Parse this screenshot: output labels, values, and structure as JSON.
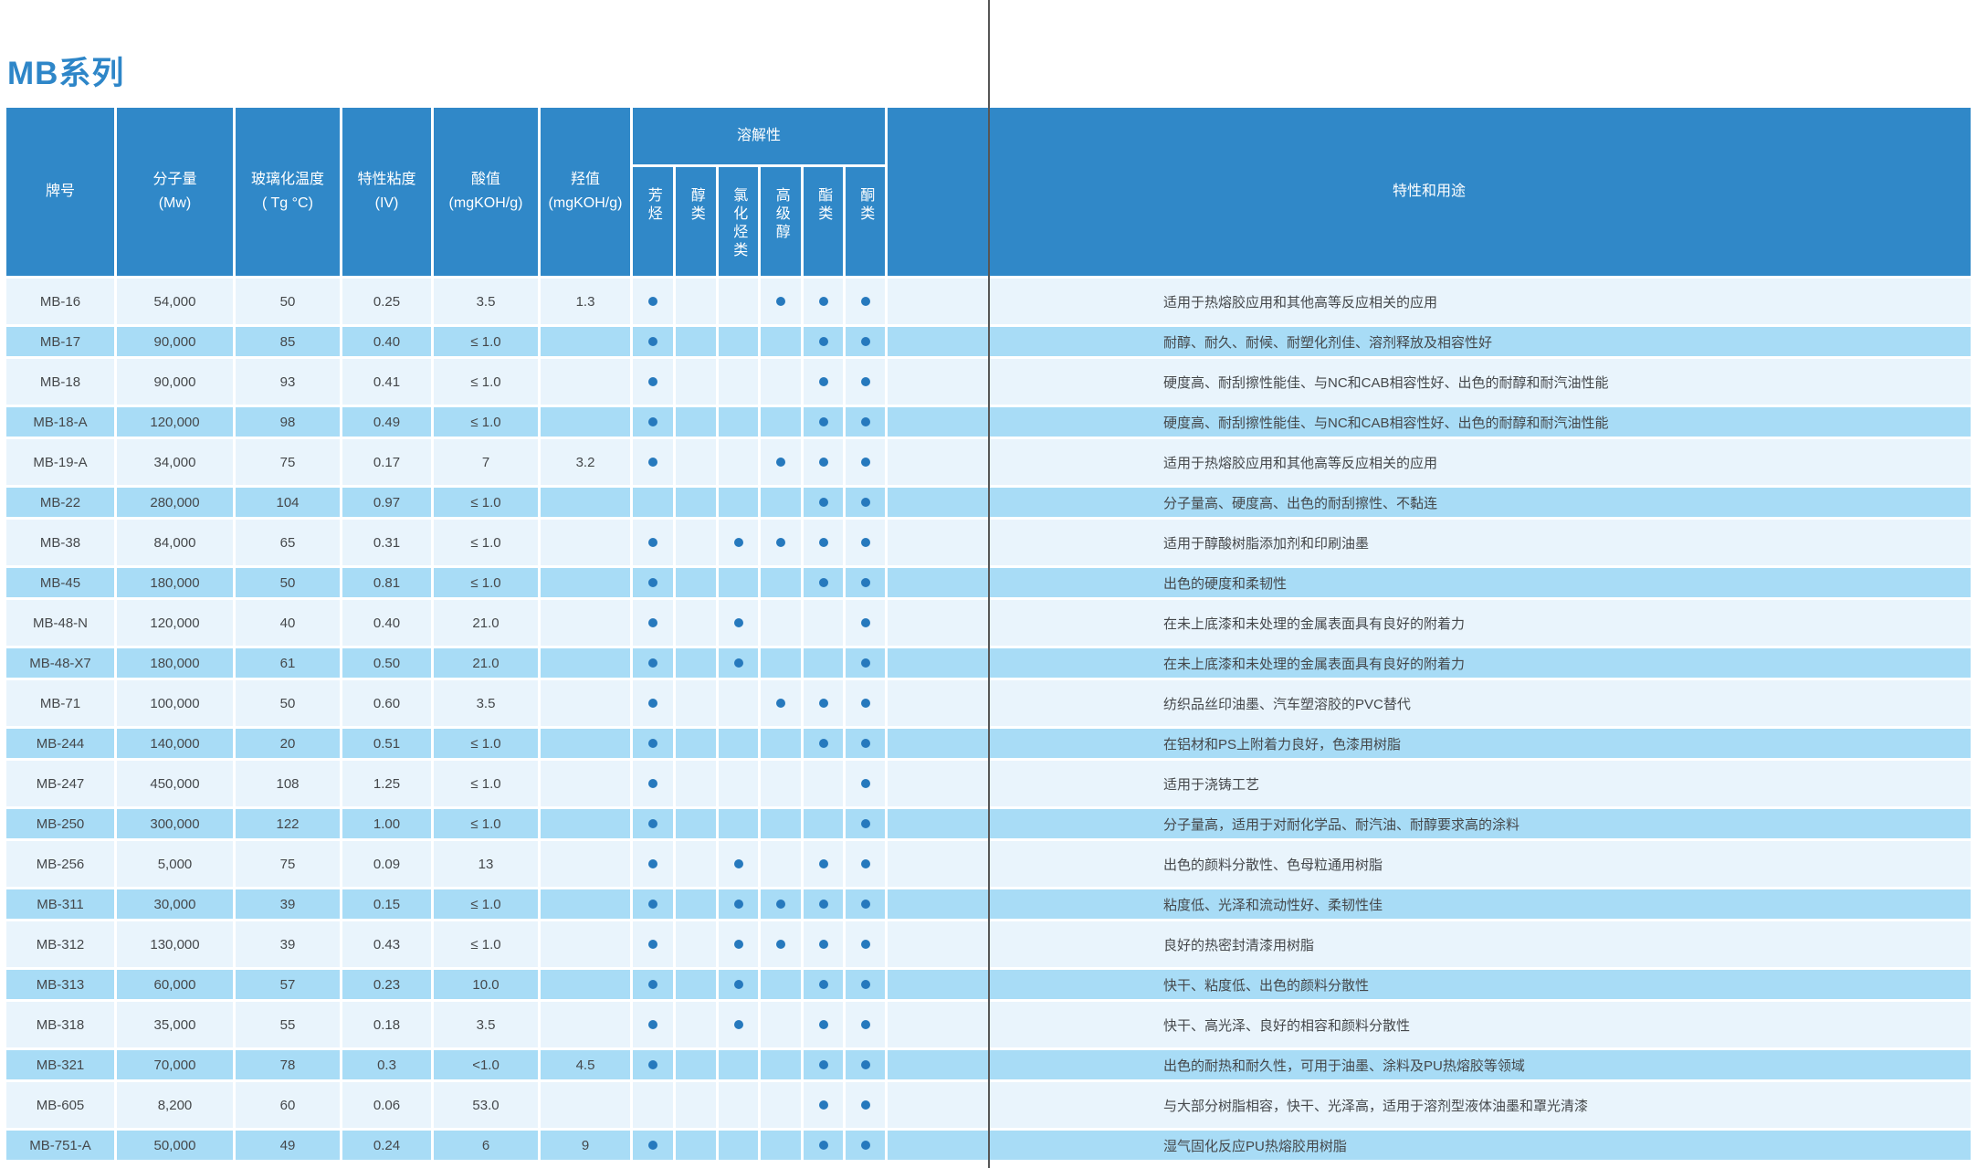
{
  "page": {
    "title": "MB系列"
  },
  "colors": {
    "header_blue": "#3088C8",
    "row_light": "#E9F4FC",
    "row_dark": "#A8DCF6",
    "dot_blue": "#2679BD",
    "title_blue": "#2E86C8",
    "body_text": "#45484B",
    "fold_line_gray": "#565656"
  },
  "table": {
    "headers": {
      "grade": "牌号",
      "mw": [
        "分子量",
        "(Mw)"
      ],
      "tg": [
        "玻璃化温度",
        "( Tg °C)"
      ],
      "iv": [
        "特性粘度",
        "(IV)"
      ],
      "acid": [
        "酸值",
        "(mgKOH/g)"
      ],
      "oh": [
        "羟值",
        "(mgKOH/g)"
      ],
      "solubility_group": "溶解性",
      "solubility_cols": [
        "芳烃",
        "醇类",
        "氯化烃类",
        "高级醇",
        "酯类",
        "酮类"
      ],
      "props": "特性和用途"
    },
    "rows": [
      {
        "grade": "MB-16",
        "mw": "54,000",
        "tg": "50",
        "iv": "0.25",
        "acid": "3.5",
        "oh": "1.3",
        "sol": [
          1,
          0,
          0,
          1,
          1,
          1
        ],
        "use": "适用于热熔胶应用和其他高等反应相关的应用"
      },
      {
        "grade": "MB-17",
        "mw": "90,000",
        "tg": "85",
        "iv": "0.40",
        "acid": "≤ 1.0",
        "oh": "",
        "sol": [
          1,
          0,
          0,
          0,
          1,
          1
        ],
        "use": "耐醇、耐久、耐候、耐塑化剂佳、溶剂释放及相容性好"
      },
      {
        "grade": "MB-18",
        "mw": "90,000",
        "tg": "93",
        "iv": "0.41",
        "acid": "≤ 1.0",
        "oh": "",
        "sol": [
          1,
          0,
          0,
          0,
          1,
          1
        ],
        "use": "硬度高、耐刮擦性能佳、与NC和CAB相容性好、出色的耐醇和耐汽油性能"
      },
      {
        "grade": "MB-18-A",
        "mw": "120,000",
        "tg": "98",
        "iv": "0.49",
        "acid": "≤ 1.0",
        "oh": "",
        "sol": [
          1,
          0,
          0,
          0,
          1,
          1
        ],
        "use": "硬度高、耐刮擦性能佳、与NC和CAB相容性好、出色的耐醇和耐汽油性能"
      },
      {
        "grade": "MB-19-A",
        "mw": "34,000",
        "tg": "75",
        "iv": "0.17",
        "acid": "7",
        "oh": "3.2",
        "sol": [
          1,
          0,
          0,
          1,
          1,
          1
        ],
        "use": "适用于热熔胶应用和其他高等反应相关的应用"
      },
      {
        "grade": "MB-22",
        "mw": "280,000",
        "tg": "104",
        "iv": "0.97",
        "acid": "≤ 1.0",
        "oh": "",
        "sol": [
          0,
          0,
          0,
          0,
          1,
          1
        ],
        "use": "分子量高、硬度高、出色的耐刮擦性、不黏连"
      },
      {
        "grade": "MB-38",
        "mw": "84,000",
        "tg": "65",
        "iv": "0.31",
        "acid": "≤ 1.0",
        "oh": "",
        "sol": [
          1,
          0,
          1,
          1,
          1,
          1
        ],
        "use": "适用于醇酸树脂添加剂和印刷油墨"
      },
      {
        "grade": "MB-45",
        "mw": "180,000",
        "tg": "50",
        "iv": "0.81",
        "acid": "≤ 1.0",
        "oh": "",
        "sol": [
          1,
          0,
          0,
          0,
          1,
          1
        ],
        "use": "出色的硬度和柔韧性"
      },
      {
        "grade": "MB-48-N",
        "mw": "120,000",
        "tg": "40",
        "iv": "0.40",
        "acid": "21.0",
        "oh": "",
        "sol": [
          1,
          0,
          1,
          0,
          0,
          1
        ],
        "use": "在未上底漆和未处理的金属表面具有良好的附着力"
      },
      {
        "grade": "MB-48-X7",
        "mw": "180,000",
        "tg": "61",
        "iv": "0.50",
        "acid": "21.0",
        "oh": "",
        "sol": [
          1,
          0,
          1,
          0,
          0,
          1
        ],
        "use": "在未上底漆和未处理的金属表面具有良好的附着力"
      },
      {
        "grade": "MB-71",
        "mw": "100,000",
        "tg": "50",
        "iv": "0.60",
        "acid": "3.5",
        "oh": "",
        "sol": [
          1,
          0,
          0,
          1,
          1,
          1
        ],
        "use": "纺织品丝印油墨、汽车塑溶胶的PVC替代"
      },
      {
        "grade": "MB-244",
        "mw": "140,000",
        "tg": "20",
        "iv": "0.51",
        "acid": "≤ 1.0",
        "oh": "",
        "sol": [
          1,
          0,
          0,
          0,
          1,
          1
        ],
        "use": "在铝材和PS上附着力良好，色漆用树脂"
      },
      {
        "grade": "MB-247",
        "mw": "450,000",
        "tg": "108",
        "iv": "1.25",
        "acid": "≤ 1.0",
        "oh": "",
        "sol": [
          1,
          0,
          0,
          0,
          0,
          1
        ],
        "use": "适用于浇铸工艺"
      },
      {
        "grade": "MB-250",
        "mw": "300,000",
        "tg": "122",
        "iv": "1.00",
        "acid": "≤ 1.0",
        "oh": "",
        "sol": [
          1,
          0,
          0,
          0,
          0,
          1
        ],
        "use": "分子量高，适用于对耐化学品、耐汽油、耐醇要求高的涂料"
      },
      {
        "grade": "MB-256",
        "mw": "5,000",
        "tg": "75",
        "iv": "0.09",
        "acid": "13",
        "oh": "",
        "sol": [
          1,
          0,
          1,
          0,
          1,
          1
        ],
        "use": "出色的颜料分散性、色母粒通用树脂"
      },
      {
        "grade": "MB-311",
        "mw": "30,000",
        "tg": "39",
        "iv": "0.15",
        "acid": "≤ 1.0",
        "oh": "",
        "sol": [
          1,
          0,
          1,
          1,
          1,
          1
        ],
        "use": "粘度低、光泽和流动性好、柔韧性佳"
      },
      {
        "grade": "MB-312",
        "mw": "130,000",
        "tg": "39",
        "iv": "0.43",
        "acid": "≤ 1.0",
        "oh": "",
        "sol": [
          1,
          0,
          1,
          1,
          1,
          1
        ],
        "use": "良好的热密封清漆用树脂"
      },
      {
        "grade": "MB-313",
        "mw": "60,000",
        "tg": "57",
        "iv": "0.23",
        "acid": "10.0",
        "oh": "",
        "sol": [
          1,
          0,
          1,
          0,
          1,
          1
        ],
        "use": "快干、粘度低、出色的颜料分散性"
      },
      {
        "grade": "MB-318",
        "mw": "35,000",
        "tg": "55",
        "iv": "0.18",
        "acid": "3.5",
        "oh": "",
        "sol": [
          1,
          0,
          1,
          0,
          1,
          1
        ],
        "use": "快干、高光泽、良好的相容和颜料分散性"
      },
      {
        "grade": "MB-321",
        "mw": "70,000",
        "tg": "78",
        "iv": "0.3",
        "acid": "<1.0",
        "oh": "4.5",
        "sol": [
          1,
          0,
          0,
          0,
          1,
          1
        ],
        "use": "出色的耐热和耐久性，可用于油墨、涂料及PU热熔胶等领域"
      },
      {
        "grade": "MB-605",
        "mw": "8,200",
        "tg": "60",
        "iv": "0.06",
        "acid": "53.0",
        "oh": "",
        "sol": [
          0,
          0,
          0,
          0,
          1,
          1
        ],
        "use": "与大部分树脂相容，快干、光泽高，适用于溶剂型液体油墨和罩光清漆"
      },
      {
        "grade": "MB-751-A",
        "mw": "50,000",
        "tg": "49",
        "iv": "0.24",
        "acid": "6",
        "oh": "9",
        "sol": [
          1,
          0,
          0,
          0,
          1,
          1
        ],
        "use": "湿气固化反应PU热熔胶用树脂"
      }
    ]
  }
}
